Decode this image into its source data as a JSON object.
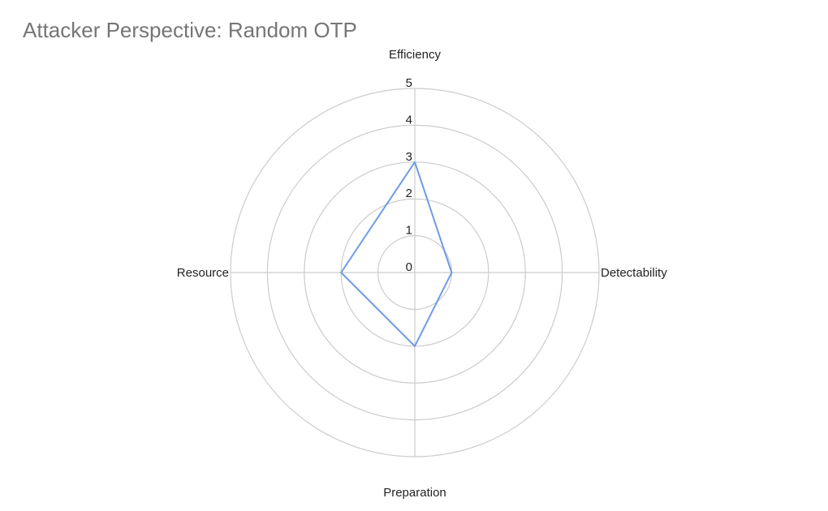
{
  "chart_data": {
    "type": "radar",
    "title": "Attacker Perspective: Random OTP",
    "axes": [
      "Efficiency",
      "Detectability",
      "Preparation",
      "Resource"
    ],
    "series": [
      {
        "values": [
          3,
          1,
          2,
          2
        ],
        "color": "#6f9be6"
      }
    ],
    "rlim": [
      0,
      5
    ],
    "ticks": [
      0,
      1,
      2,
      3,
      4,
      5
    ],
    "grid": true,
    "gridColor": "#cccccc",
    "legend": "none"
  }
}
